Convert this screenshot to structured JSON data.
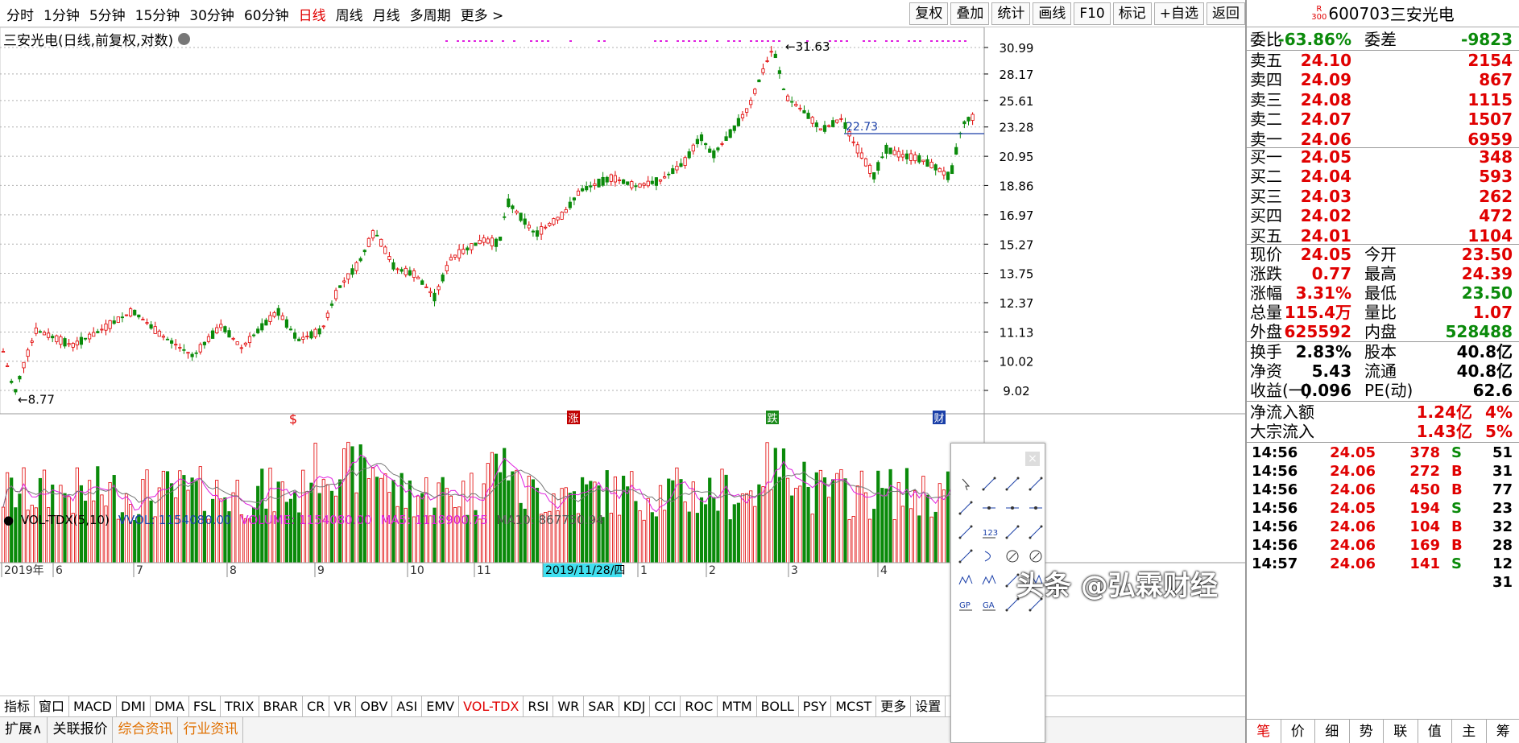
{
  "topbar": {
    "periods": [
      "分时",
      "1分钟",
      "5分钟",
      "15分钟",
      "30分钟",
      "60分钟",
      "日线",
      "周线",
      "月线",
      "多周期",
      "更多 >"
    ],
    "active_period": "日线",
    "tools": [
      "复权",
      "叠加",
      "统计",
      "画线",
      "F10",
      "标记",
      "+自选",
      "返回"
    ]
  },
  "kchart": {
    "title": "三安光电(日线,前复权,对数)",
    "price_ticks": [
      "30.99",
      "28.17",
      "25.61",
      "23.28",
      "20.95",
      "18.86",
      "16.97",
      "15.27",
      "13.75",
      "12.37",
      "11.13",
      "10.02",
      "9.02"
    ],
    "high_label": "31.63",
    "low_label": "8.77",
    "line_label": "22.73",
    "event_markers": [
      "$",
      "涨",
      "跌",
      "财"
    ]
  },
  "volume": {
    "indicator": "VOL-TDX(5,10)",
    "vvol": "VVOL: 1154080.00",
    "volume": "VOLUME: 1154080.00",
    "ma5": "MA5: 1118900.75",
    "ma10": "MA10: 867750.94"
  },
  "timeaxis": {
    "labels": [
      "2019年",
      "6",
      "7",
      "8",
      "9",
      "10",
      "11",
      "2019/11/28/四",
      "1",
      "2",
      "3",
      "4"
    ]
  },
  "indicators": [
    "指标",
    "窗口",
    "MACD",
    "DMI",
    "DMA",
    "FSL",
    "TRIX",
    "BRAR",
    "CR",
    "VR",
    "OBV",
    "ASI",
    "EMV",
    "VOL-TDX",
    "RSI",
    "WR",
    "SAR",
    "KDJ",
    "CCI",
    "ROC",
    "MTM",
    "BOLL",
    "PSY",
    "MCST",
    "更多",
    "设置"
  ],
  "active_indicator": "VOL-TDX",
  "bottom_tabs": [
    "扩展∧",
    "关联报价",
    "综合资讯",
    "行业资讯"
  ],
  "quote": {
    "badge_top": "R",
    "badge_bottom": "300",
    "code": "600703",
    "name": "三安光电",
    "weibi_label": "委比",
    "weibi": "-63.86%",
    "weicha_label": "委差",
    "weicha": "-9823",
    "asks": [
      {
        "label": "卖五",
        "price": "24.10",
        "vol": "2154"
      },
      {
        "label": "卖四",
        "price": "24.09",
        "vol": "867"
      },
      {
        "label": "卖三",
        "price": "24.08",
        "vol": "1115"
      },
      {
        "label": "卖二",
        "price": "24.07",
        "vol": "1507"
      },
      {
        "label": "卖一",
        "price": "24.06",
        "vol": "6959"
      }
    ],
    "bids": [
      {
        "label": "买一",
        "price": "24.05",
        "vol": "348"
      },
      {
        "label": "买二",
        "price": "24.04",
        "vol": "593"
      },
      {
        "label": "买三",
        "price": "24.03",
        "vol": "262"
      },
      {
        "label": "买四",
        "price": "24.02",
        "vol": "472"
      },
      {
        "label": "买五",
        "price": "24.01",
        "vol": "1104"
      }
    ],
    "stats1": [
      {
        "k1": "现价",
        "v1": "24.05",
        "k2": "今开",
        "v2": "23.50"
      },
      {
        "k1": "涨跌",
        "v1": "0.77",
        "k2": "最高",
        "v2": "24.39"
      },
      {
        "k1": "涨幅",
        "v1": "3.31%",
        "k2": "最低",
        "v2": "23.50"
      },
      {
        "k1": "总量",
        "v1": "115.4万",
        "k2": "量比",
        "v2": "1.07"
      },
      {
        "k1": "外盘",
        "v1": "625592",
        "k2": "内盘",
        "v2": "528488"
      }
    ],
    "stats2": [
      {
        "k1": "换手",
        "v1": "2.83%",
        "k2": "股本",
        "v2": "40.8亿"
      },
      {
        "k1": "净资",
        "v1": "5.43",
        "k2": "流通",
        "v2": "40.8亿"
      },
      {
        "k1": "收益(一)",
        "v1": "0.096",
        "k2": "PE(动)",
        "v2": "62.6"
      }
    ],
    "flows": [
      {
        "k": "净流入额",
        "v": "1.24亿",
        "p": "4%"
      },
      {
        "k": "大宗流入",
        "v": "1.43亿",
        "p": "5%"
      }
    ],
    "ticks": [
      {
        "t": "14:56",
        "p": "24.05",
        "v": "378",
        "s": "S",
        "n": "51"
      },
      {
        "t": "14:56",
        "p": "24.06",
        "v": "272",
        "s": "B",
        "n": "31"
      },
      {
        "t": "14:56",
        "p": "24.06",
        "v": "450",
        "s": "B",
        "n": "77"
      },
      {
        "t": "14:56",
        "p": "24.05",
        "v": "194",
        "s": "S",
        "n": "23"
      },
      {
        "t": "14:56",
        "p": "24.06",
        "v": "104",
        "s": "B",
        "n": "32"
      },
      {
        "t": "14:56",
        "p": "24.06",
        "v": "169",
        "s": "B",
        "n": "28"
      },
      {
        "t": "14:57",
        "p": "24.06",
        "v": "141",
        "s": "S",
        "n": "12"
      },
      {
        "t": "",
        "p": "",
        "v": "",
        "s": "",
        "n": "31"
      }
    ],
    "tabs": [
      "笔",
      "价",
      "细",
      "势",
      "联",
      "值",
      "主",
      "筹"
    ]
  },
  "watermark": "头条 @弘霖财经",
  "colors": {
    "up": "#e00000",
    "down": "#0a8a0a",
    "line": "#1a3fa8",
    "ma5": "#e020e0",
    "ma10": "#777777"
  }
}
